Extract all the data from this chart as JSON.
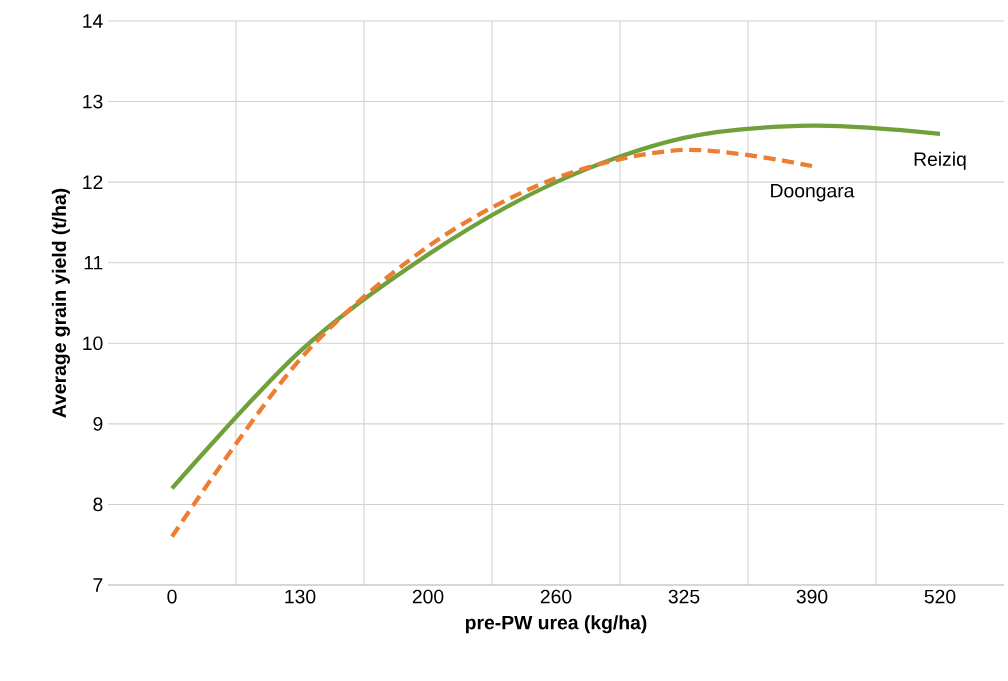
{
  "chart_data": {
    "type": "line",
    "xlabel": "pre-PW urea (kg/ha)",
    "ylabel": "Average grain yield (t/ha)",
    "categories": [
      "0",
      "130",
      "200",
      "260",
      "325",
      "390",
      "520"
    ],
    "series": [
      {
        "name": "Reiziq",
        "color": "#70a03a",
        "line_style": "solid",
        "values": [
          8.2,
          9.9,
          11.1,
          12.0,
          12.55,
          12.7,
          12.6
        ]
      },
      {
        "name": "Doongara",
        "color": "#ed7d31",
        "line_style": "dashed",
        "values": [
          7.6,
          9.8,
          11.2,
          12.05,
          12.4,
          12.2,
          null
        ]
      }
    ],
    "ylim": [
      7,
      14
    ],
    "yticks": [
      7,
      8,
      9,
      10,
      11,
      12,
      13,
      14
    ],
    "grid": true,
    "legend": false,
    "marker": "none"
  }
}
